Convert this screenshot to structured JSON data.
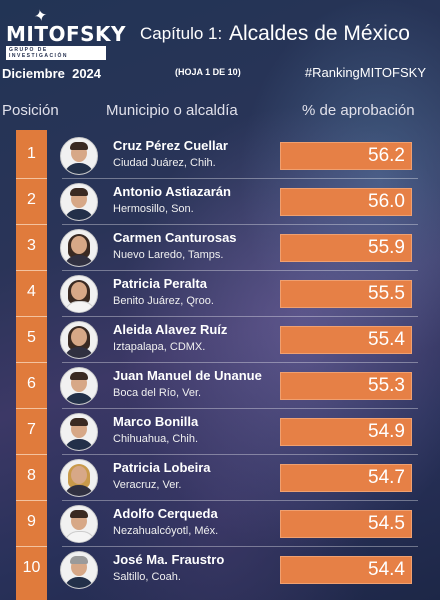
{
  "header": {
    "logo_text": "MITOFSKY",
    "logo_tagline": "GRUPO DE INVESTIGACIÓN",
    "chapter": "Capítulo 1:",
    "title": "Alcaldes de México",
    "date": "Diciembre  2024",
    "sheet": "(HOJA 1 DE 10)",
    "hashtag": "#RankingMITOFSKY"
  },
  "columns": {
    "position": "Posición",
    "municipality": "Municipio o alcaldía",
    "approval": "% de aprobación"
  },
  "colors": {
    "accent": "#e07b3c",
    "background": "#2a3458"
  },
  "rows": [
    {
      "position": "1",
      "name": "Cruz Pérez Cuellar",
      "place": "Ciudad Juárez, Chih.",
      "approval": "56.2"
    },
    {
      "position": "2",
      "name": "Antonio Astiazarán",
      "place": "Hermosillo, Son.",
      "approval": "56.0"
    },
    {
      "position": "3",
      "name": "Carmen Canturosas",
      "place": "Nuevo Laredo, Tamps.",
      "approval": "55.9"
    },
    {
      "position": "4",
      "name": "Patricia Peralta",
      "place": "Benito Juárez, Qroo.",
      "approval": "55.5"
    },
    {
      "position": "5",
      "name": "Aleida Alavez Ruíz",
      "place": "Iztapalapa, CDMX.",
      "approval": "55.4"
    },
    {
      "position": "6",
      "name": "Juan Manuel de Unanue",
      "place": "Boca del Río, Ver.",
      "approval": "55.3"
    },
    {
      "position": "7",
      "name": "Marco Bonilla",
      "place": "Chihuahua, Chih.",
      "approval": "54.9"
    },
    {
      "position": "8",
      "name": "Patricia Lobeira",
      "place": "Veracruz, Ver.",
      "approval": "54.7"
    },
    {
      "position": "9",
      "name": "Adolfo Cerqueda",
      "place": "Nezahualcóyotl, Méx.",
      "approval": "54.5"
    },
    {
      "position": "10",
      "name": "José Ma. Fraustro",
      "place": "Saltillo, Coah.",
      "approval": "54.4"
    }
  ]
}
